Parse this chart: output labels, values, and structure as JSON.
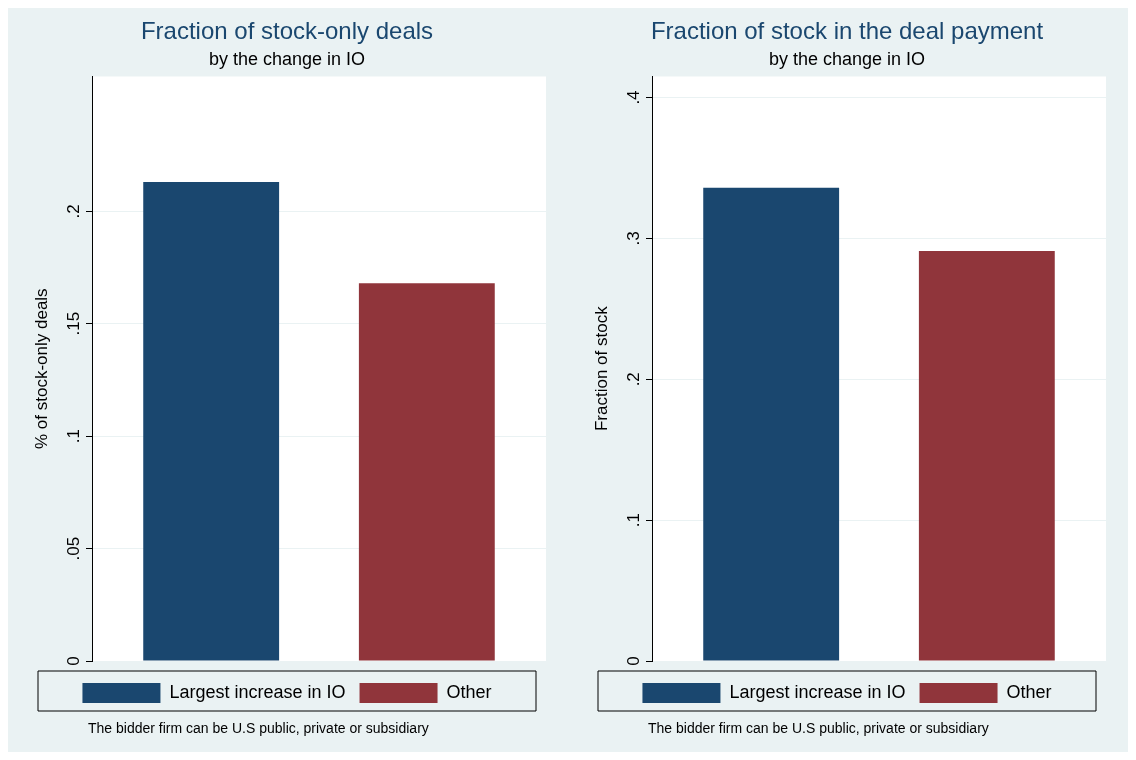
{
  "chart_data": [
    {
      "type": "bar",
      "title": "Fraction of stock-only deals",
      "subtitle": "by the change in IO",
      "ylabel": "% of stock-only deals",
      "categories": [
        null
      ],
      "series": [
        {
          "name": "Largest increase in IO",
          "color": "#1a476f",
          "values": [
            0.213
          ]
        },
        {
          "name": "Other",
          "color": "#90353b",
          "values": [
            0.168
          ]
        }
      ],
      "ylim": [
        0,
        0.26
      ],
      "yticks": [
        0,
        {
          "value": 0.05,
          "label": ".05"
        },
        {
          "value": 0.1,
          "label": ".1"
        },
        {
          "value": 0.15,
          "label": ".15"
        },
        {
          "value": 0.2,
          "label": ".2"
        }
      ],
      "grid": "y",
      "legend": "bottom",
      "annotations": [
        "The bidder firm can be U.S public, private or subsidiary"
      ]
    },
    {
      "type": "bar",
      "title": "Fraction of stock in the deal payment",
      "subtitle": "by the change in IO",
      "ylabel": "Fraction of stock",
      "categories": [
        null
      ],
      "series": [
        {
          "name": "Largest increase in IO",
          "color": "#1a476f",
          "values": [
            0.336
          ]
        },
        {
          "name": "Other",
          "color": "#90353b",
          "values": [
            0.291
          ]
        }
      ],
      "ylim": [
        0,
        0.415
      ],
      "yticks": [
        0,
        {
          "value": 0.1,
          "label": ".1"
        },
        {
          "value": 0.2,
          "label": ".2"
        },
        {
          "value": 0.3,
          "label": ".3"
        },
        {
          "value": 0.4,
          "label": ".4"
        }
      ],
      "grid": "y",
      "legend": "bottom",
      "annotations": [
        "The bidder firm can be U.S public, private or subsidiary"
      ]
    }
  ]
}
